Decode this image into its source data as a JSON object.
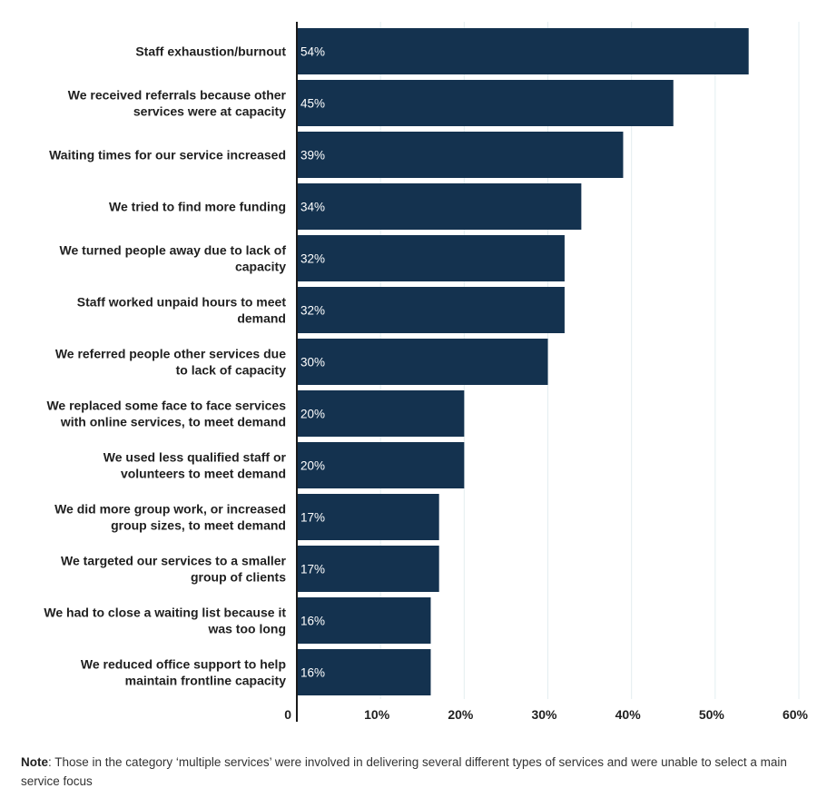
{
  "chart_data": {
    "type": "bar",
    "orientation": "horizontal",
    "categories": [
      [
        "Staff exhaustion/burnout"
      ],
      [
        "We received referrals because other",
        "services were at capacity"
      ],
      [
        "Waiting times for our service increased"
      ],
      [
        "We tried to find more funding"
      ],
      [
        "We turned people away due to lack of",
        "capacity"
      ],
      [
        "Staff worked unpaid hours to meet",
        "demand"
      ],
      [
        "We referred people other services due",
        "to lack of capacity"
      ],
      [
        "We replaced some face to face services",
        "with online services, to meet demand"
      ],
      [
        "We used less qualified staff or",
        "volunteers to meet demand"
      ],
      [
        "We did more group work, or increased",
        "group sizes, to meet demand"
      ],
      [
        "We targeted our services to a smaller",
        "group of clients"
      ],
      [
        "We had to close a waiting list because it",
        "was too long"
      ],
      [
        "We reduced office support to help",
        "maintain frontline capacity"
      ]
    ],
    "values": [
      54,
      45,
      39,
      34,
      32,
      32,
      30,
      20,
      20,
      17,
      17,
      16,
      16
    ],
    "value_labels": [
      "54%",
      "45%",
      "39%",
      "34%",
      "32%",
      "32%",
      "30%",
      "20%",
      "20%",
      "17%",
      "17%",
      "16%",
      "16%"
    ],
    "xlim": [
      0,
      60
    ],
    "x_ticks": [
      {
        "value": 0,
        "label": "0"
      },
      {
        "value": 10,
        "label": "10%"
      },
      {
        "value": 20,
        "label": "20%"
      },
      {
        "value": 30,
        "label": "30%"
      },
      {
        "value": 40,
        "label": "40%"
      },
      {
        "value": 50,
        "label": "50%"
      },
      {
        "value": 60,
        "label": "60%"
      }
    ],
    "grid": true,
    "legend": "none",
    "bar_color": "#14324f",
    "title": "",
    "xlabel": "",
    "ylabel": ""
  },
  "note": {
    "prefix": "Note",
    "text": ": Those in the category ‘multiple services’ were involved in delivering several different types of services and were unable to select a main service focus"
  }
}
